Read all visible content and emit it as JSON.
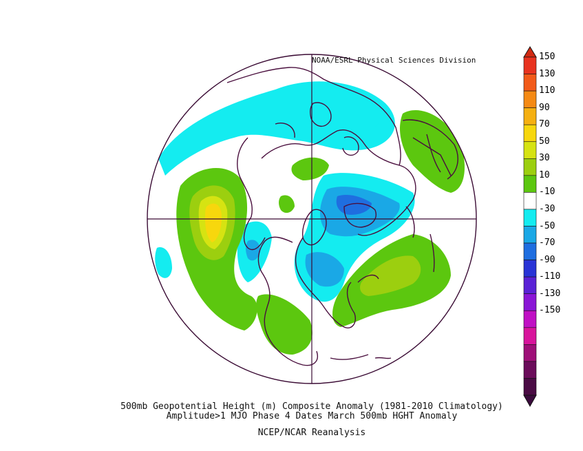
{
  "credit": "NOAA/ESRL Physical Sciences Division",
  "caption_line1": "500mb Geopotential Height (m) Composite Anomaly (1981-2010 Climatology)",
  "caption_line2": "Amplitude>1 MJO Phase 4 Dates March 500mb HGHT Anomaly",
  "source": "NCEP/NCAR Reanalysis",
  "projection": "north-polar-stereographic",
  "colorbar": {
    "ticks": [
      "150",
      "130",
      "110",
      "90",
      "70",
      "50",
      "30",
      "10",
      "-10",
      "-30",
      "-50",
      "-70",
      "-90",
      "-110",
      "-130",
      "-150"
    ],
    "colors": [
      "#e8331f",
      "#f25a19",
      "#f58a14",
      "#f5b011",
      "#f7d70d",
      "#d6e312",
      "#9ccf0f",
      "#5cc70f",
      "#ffffff",
      "#14ecf0",
      "#1aa8e6",
      "#1f6ee0",
      "#2934d6",
      "#5a22d6",
      "#8a16d6",
      "#c010c4",
      "#d8149c",
      "#9e0f78",
      "#6b0c5a",
      "#4a0b44"
    ],
    "top_arrow_color": "#d12a12",
    "bottom_arrow_color": "#3a0b3c"
  },
  "colors": {
    "coastline": "#4a0f3e",
    "frame": "#3a0b34"
  }
}
